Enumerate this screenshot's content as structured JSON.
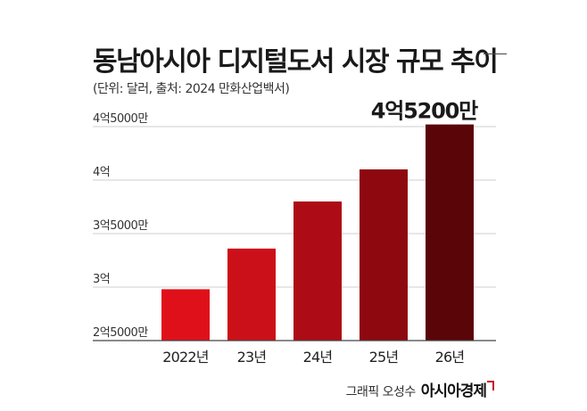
{
  "header": {
    "title": "동남아시아 디지털도서 시장 규모 추이",
    "subtitle": "(단위: 달러, 출처: 2024 만화산업백서)"
  },
  "chart_data": {
    "type": "bar",
    "categories": [
      "2022년",
      "23년",
      "24년",
      "25년",
      "26년"
    ],
    "values": [
      298000000,
      336000000,
      380000000,
      410000000,
      452000000
    ],
    "ylim": [
      250000000,
      450000000
    ],
    "yticks": [
      {
        "value": 250000000,
        "label": "2억5000만"
      },
      {
        "value": 300000000,
        "label": "3억"
      },
      {
        "value": 350000000,
        "label": "3억5000만"
      },
      {
        "value": 400000000,
        "label": "4억"
      },
      {
        "value": 450000000,
        "label": "4억5000만"
      }
    ],
    "annotation": {
      "index": 4,
      "text": "4억5200만"
    },
    "bar_colors": [
      "#e0101a",
      "#cc1019",
      "#ad0b15",
      "#8e0810",
      "#5a0507"
    ],
    "grid": true
  },
  "credit": {
    "artist": "그래픽 오성수",
    "brand": "아시아경제"
  }
}
